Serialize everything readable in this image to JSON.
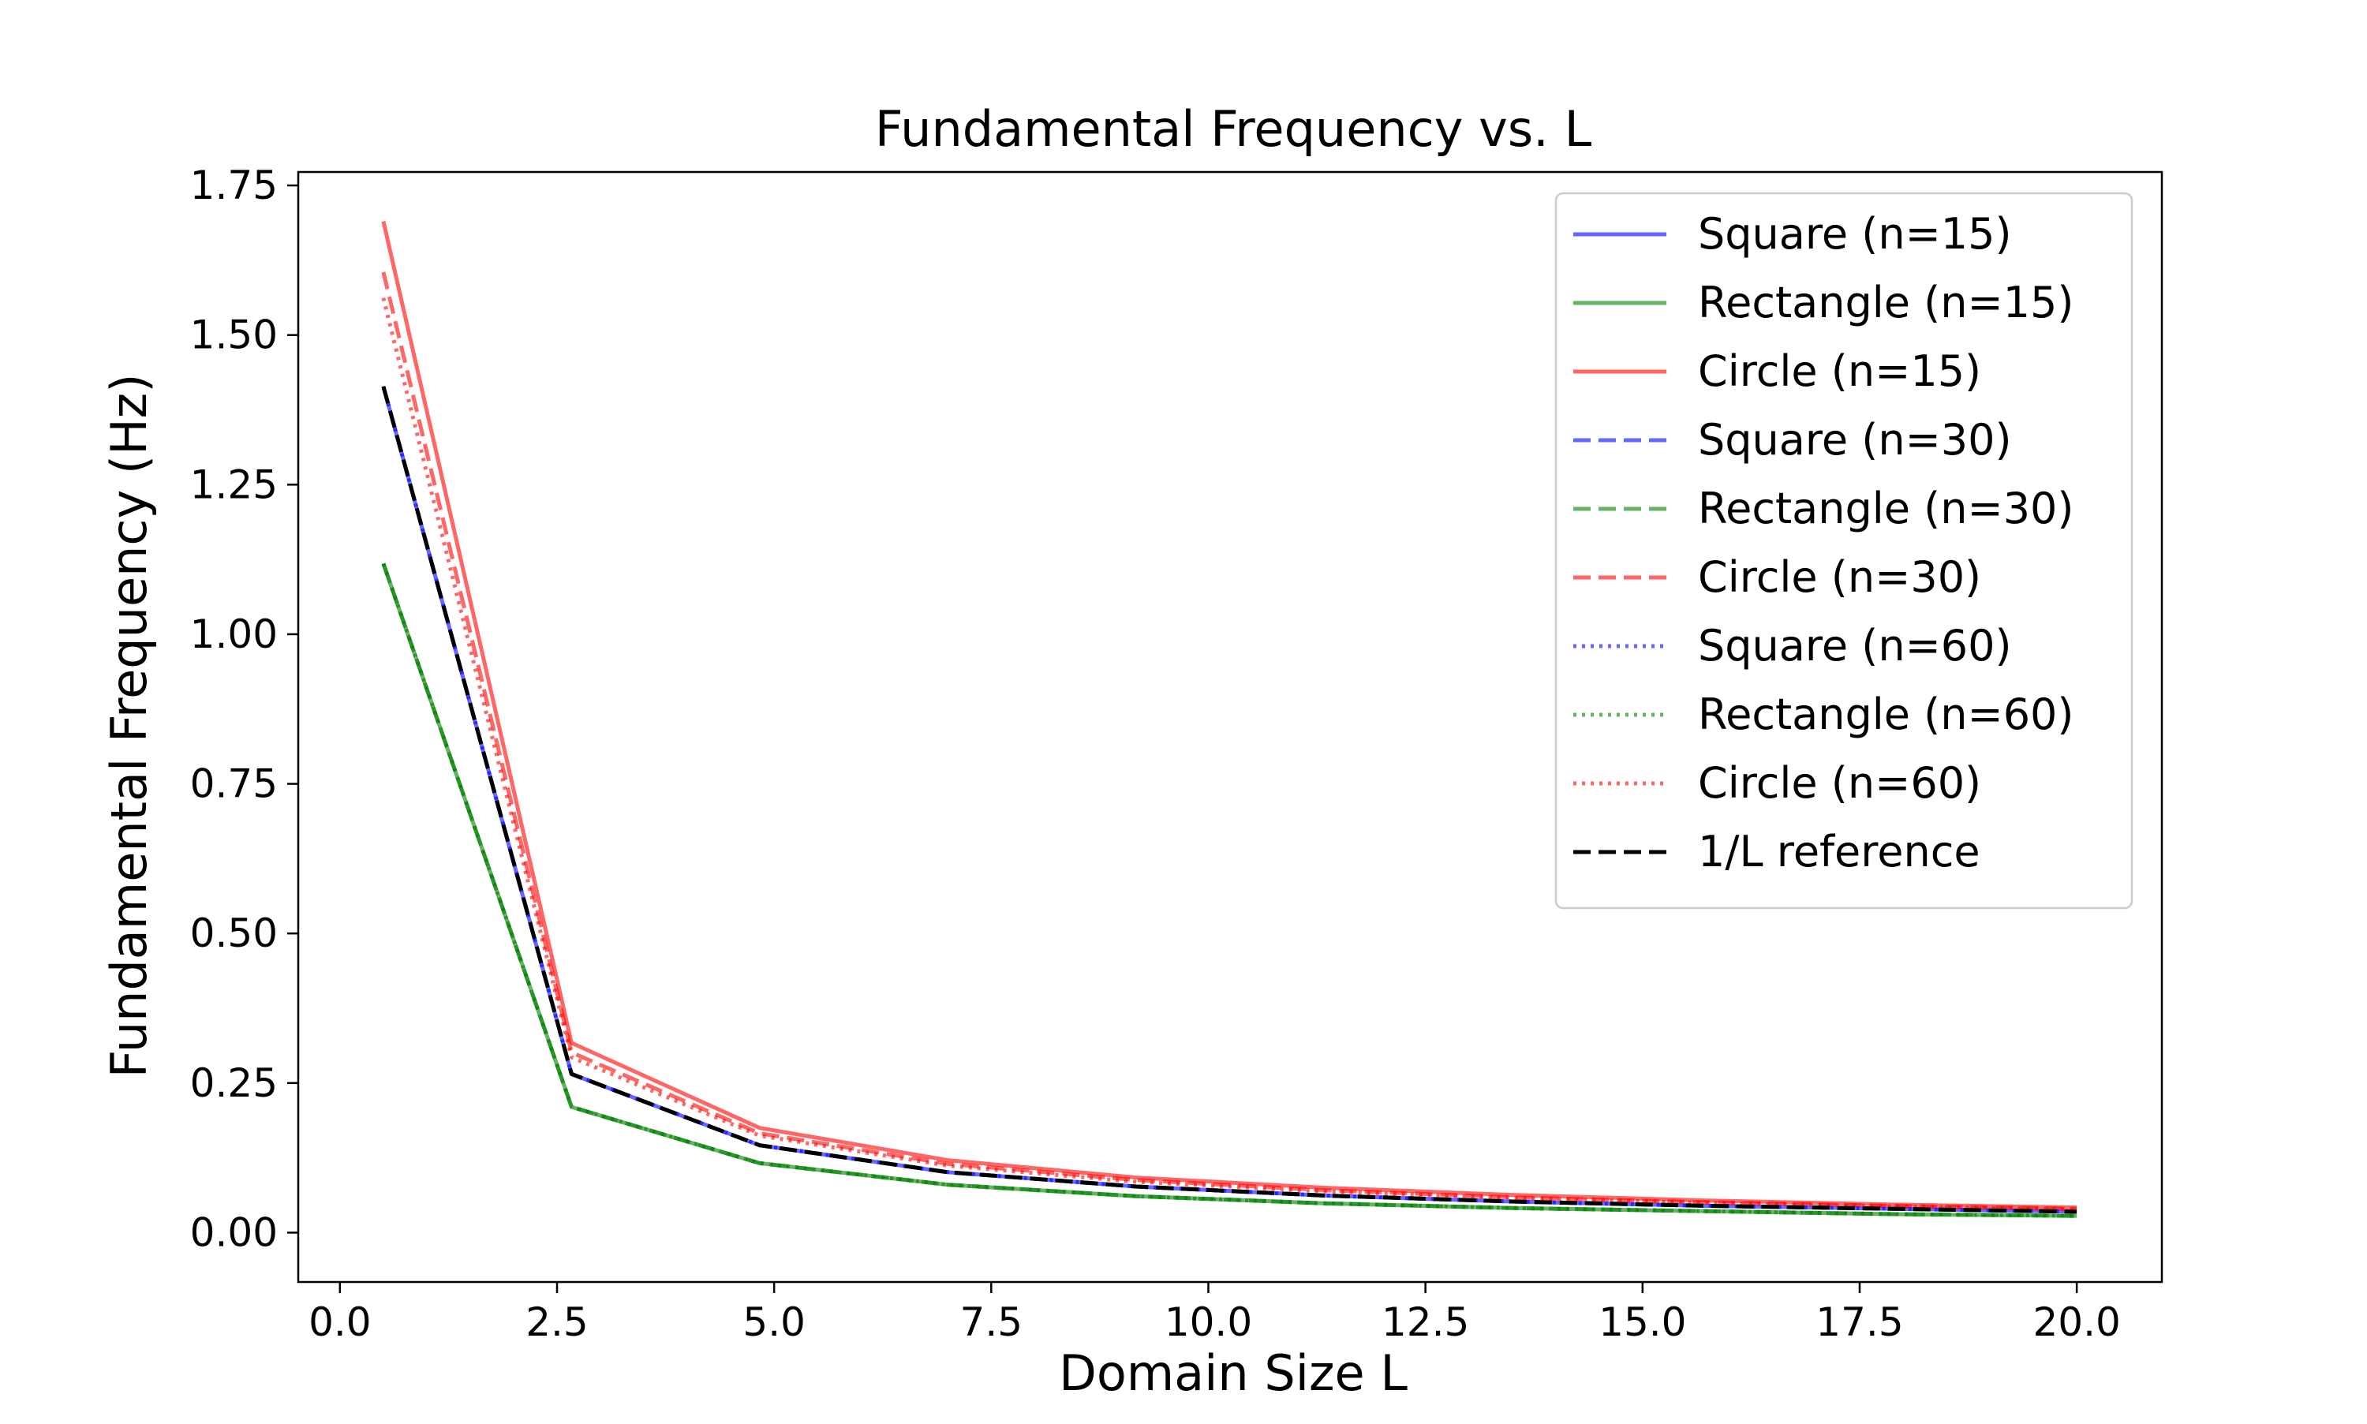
{
  "chart_data": {
    "type": "line",
    "title": "Fundamental Frequency vs. L",
    "xlabel": "Domain Size L",
    "ylabel": "Fundamental Frequency (Hz)",
    "xlim": [
      -0.48,
      20.98
    ],
    "ylim": [
      -0.0825,
      1.7725
    ],
    "x_ticks": [
      0.0,
      2.5,
      5.0,
      7.5,
      10.0,
      12.5,
      15.0,
      17.5,
      20.0
    ],
    "x_tick_labels": [
      "0.0",
      "2.5",
      "5.0",
      "7.5",
      "10.0",
      "12.5",
      "15.0",
      "17.5",
      "20.0"
    ],
    "y_ticks": [
      0.0,
      0.25,
      0.5,
      0.75,
      1.0,
      1.25,
      1.5,
      1.75
    ],
    "y_tick_labels": [
      "0.00",
      "0.25",
      "0.50",
      "0.75",
      "1.00",
      "1.25",
      "1.50",
      "1.75"
    ],
    "grid": false,
    "legend_position": "top-right",
    "x": [
      0.5,
      2.667,
      4.833,
      7.0,
      9.167,
      11.333,
      13.5,
      15.667,
      17.833,
      20.0
    ],
    "series": [
      {
        "name": "Square (n=15)",
        "color": "#0000ff",
        "dash": "solid",
        "values": [
          1.414,
          0.265,
          0.146,
          0.101,
          0.077,
          0.062,
          0.052,
          0.045,
          0.04,
          0.035
        ]
      },
      {
        "name": "Rectangle (n=15)",
        "color": "#008000",
        "dash": "solid",
        "values": [
          1.118,
          0.21,
          0.116,
          0.08,
          0.061,
          0.049,
          0.041,
          0.036,
          0.031,
          0.028
        ]
      },
      {
        "name": "Circle (n=15)",
        "color": "#ff0000",
        "dash": "solid",
        "values": [
          1.69,
          0.317,
          0.175,
          0.121,
          0.092,
          0.075,
          0.063,
          0.054,
          0.047,
          0.042
        ]
      },
      {
        "name": "Square (n=30)",
        "color": "#0000ff",
        "dash": "dashed",
        "values": [
          1.414,
          0.265,
          0.146,
          0.101,
          0.077,
          0.062,
          0.052,
          0.045,
          0.04,
          0.035
        ]
      },
      {
        "name": "Rectangle (n=30)",
        "color": "#008000",
        "dash": "dashed",
        "values": [
          1.118,
          0.21,
          0.116,
          0.08,
          0.061,
          0.049,
          0.041,
          0.036,
          0.031,
          0.028
        ]
      },
      {
        "name": "Circle (n=30)",
        "color": "#ff0000",
        "dash": "dashed",
        "values": [
          1.605,
          0.301,
          0.166,
          0.115,
          0.088,
          0.071,
          0.059,
          0.051,
          0.045,
          0.04
        ]
      },
      {
        "name": "Square (n=60)",
        "color": "#0000ff",
        "dash": "dotted",
        "values": [
          1.414,
          0.265,
          0.146,
          0.101,
          0.077,
          0.062,
          0.052,
          0.045,
          0.04,
          0.035
        ]
      },
      {
        "name": "Rectangle (n=60)",
        "color": "#008000",
        "dash": "dotted",
        "values": [
          1.118,
          0.21,
          0.116,
          0.08,
          0.061,
          0.049,
          0.041,
          0.036,
          0.031,
          0.028
        ]
      },
      {
        "name": "Circle (n=60)",
        "color": "#ff0000",
        "dash": "dotted",
        "values": [
          1.562,
          0.293,
          0.162,
          0.112,
          0.085,
          0.069,
          0.058,
          0.05,
          0.044,
          0.039
        ]
      },
      {
        "name": "1/L reference",
        "color": "#000000",
        "dash": "dashed",
        "values": [
          1.414,
          0.265,
          0.146,
          0.101,
          0.077,
          0.062,
          0.052,
          0.045,
          0.04,
          0.035
        ]
      }
    ]
  }
}
